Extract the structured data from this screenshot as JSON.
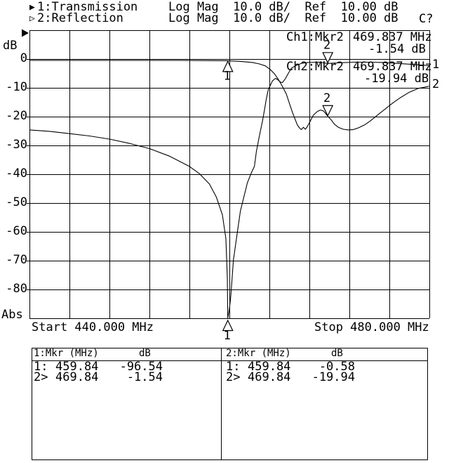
{
  "header": {
    "ch1": {
      "indicator": "▶",
      "name": "1:Transmission",
      "settings": "Log Mag  10.0 dB/  Ref  10.00 dB"
    },
    "ch2": {
      "indicator": "▷",
      "name": "2:Reflection",
      "settings": "Log Mag  10.0 dB/  Ref  10.00 dB",
      "cal_status": "C?"
    }
  },
  "y_axis": {
    "unit": "dB",
    "mode": "Abs",
    "ticks": [
      "0",
      "-10",
      "-20",
      "-30",
      "-40",
      "-50",
      "-60",
      "-70",
      "-80"
    ]
  },
  "x_axis": {
    "start": "Start 440.000 MHz",
    "stop": "Stop 480.000 MHz"
  },
  "readout": {
    "ch1": {
      "label": "Ch1:Mkr2",
      "freq": "469.837 MHz",
      "value": "-1.54 dB"
    },
    "ch2": {
      "label": "Ch2:Mkr2",
      "freq": "469.837 MHz",
      "value": "-19.94 dB"
    }
  },
  "trace_end_labels": {
    "trace1": "1",
    "trace2": "2"
  },
  "marker_tables": {
    "ch1": {
      "title": "1:Mkr (MHz)",
      "unit": "dB",
      "rows": [
        [
          "1:",
          "459.84",
          "-96.54"
        ],
        [
          "2>",
          "469.84",
          "-1.54"
        ]
      ]
    },
    "ch2": {
      "title": "2:Mkr (MHz)",
      "unit": "dB",
      "rows": [
        [
          "1:",
          "459.84",
          "-0.58"
        ],
        [
          "2>",
          "469.84",
          "-19.94"
        ]
      ]
    }
  },
  "colors": {
    "fg": "#000000",
    "bg": "#ffffff"
  },
  "chart_data": {
    "type": "line",
    "title": "Network analyzer: Ch1 Transmission / Ch2 Reflection, Log Mag 10.0 dB/div, Ref 10.00 dB",
    "xlabel": "Frequency (MHz)",
    "ylabel": "dB",
    "x_range": [
      440,
      480
    ],
    "y_range": [
      -90,
      10
    ],
    "y_per_div": 10,
    "ref_level": 10,
    "grid": true,
    "series": [
      {
        "name": "Transmission",
        "points": [
          [
            440,
            -24.6
          ],
          [
            442,
            -25.1
          ],
          [
            444,
            -25.9
          ],
          [
            446,
            -26.7
          ],
          [
            448,
            -27.8
          ],
          [
            450,
            -29.3
          ],
          [
            452,
            -31.1
          ],
          [
            454,
            -33.7
          ],
          [
            456,
            -37.3
          ],
          [
            457,
            -39.8
          ],
          [
            458,
            -43.4
          ],
          [
            458.7,
            -48
          ],
          [
            459.3,
            -54.1
          ],
          [
            459.65,
            -62.4
          ],
          [
            459.79,
            -75.9
          ],
          [
            459.84,
            -96.54
          ],
          [
            460,
            -86.8
          ],
          [
            460.15,
            -82
          ],
          [
            460.4,
            -69.8
          ],
          [
            460.8,
            -60
          ],
          [
            461.1,
            -52.7
          ],
          [
            461.5,
            -47.1
          ],
          [
            461.8,
            -42.9
          ],
          [
            462.2,
            -39.5
          ],
          [
            462.5,
            -37.3
          ],
          [
            462.7,
            -32
          ],
          [
            463,
            -26.6
          ],
          [
            463.3,
            -21.7
          ],
          [
            463.5,
            -17.8
          ],
          [
            463.7,
            -13.7
          ],
          [
            463.9,
            -10.5
          ],
          [
            464.3,
            -7.6
          ],
          [
            464.6,
            -6.7
          ],
          [
            464.8,
            -7.1
          ],
          [
            465.1,
            -8
          ],
          [
            465.3,
            -8.2
          ],
          [
            465.6,
            -6.8
          ],
          [
            465.9,
            -4.9
          ],
          [
            466.2,
            -3.2
          ],
          [
            466.7,
            -2.2
          ],
          [
            467.2,
            -1.5
          ],
          [
            467.9,
            -1.2
          ],
          [
            469,
            -1.1
          ],
          [
            469.8,
            -1.54
          ],
          [
            471.1,
            -1.3
          ],
          [
            472.5,
            -1.1
          ],
          [
            473.9,
            -1.1
          ],
          [
            475.3,
            -1.2
          ],
          [
            476.7,
            -1.5
          ],
          [
            478.1,
            -1.8
          ],
          [
            479.2,
            -2.1
          ],
          [
            480,
            -2.3
          ]
        ]
      },
      {
        "name": "Reflection",
        "points": [
          [
            440,
            -0.5
          ],
          [
            445,
            -0.5
          ],
          [
            450,
            -0.5
          ],
          [
            455,
            -0.5
          ],
          [
            458,
            -0.55
          ],
          [
            459.8,
            -0.58
          ],
          [
            461,
            -0.8
          ],
          [
            462.3,
            -1.2
          ],
          [
            463,
            -1.7
          ],
          [
            463.6,
            -2.4
          ],
          [
            464.1,
            -3.7
          ],
          [
            464.5,
            -5.1
          ],
          [
            464.9,
            -7.1
          ],
          [
            465.3,
            -9.5
          ],
          [
            465.7,
            -12.2
          ],
          [
            466,
            -15.4
          ],
          [
            466.3,
            -18.5
          ],
          [
            466.6,
            -21.2
          ],
          [
            466.8,
            -22.9
          ],
          [
            467,
            -23.9
          ],
          [
            467.2,
            -24.5
          ],
          [
            467.4,
            -23.7
          ],
          [
            467.6,
            -24.4
          ],
          [
            467.8,
            -23.4
          ],
          [
            468.1,
            -21.5
          ],
          [
            468.4,
            -19.5
          ],
          [
            468.8,
            -18.2
          ],
          [
            469.1,
            -17.7
          ],
          [
            469.4,
            -18
          ],
          [
            469.6,
            -18.8
          ],
          [
            469.86,
            -19.94
          ],
          [
            470.2,
            -21.2
          ],
          [
            470.5,
            -22.6
          ],
          [
            470.9,
            -23.7
          ],
          [
            471.4,
            -24.4
          ],
          [
            471.9,
            -24.6
          ],
          [
            472.4,
            -24.5
          ],
          [
            472.9,
            -23.9
          ],
          [
            473.5,
            -22.9
          ],
          [
            474.1,
            -21.5
          ],
          [
            474.8,
            -19.5
          ],
          [
            475.6,
            -17.3
          ],
          [
            476.4,
            -15.1
          ],
          [
            477.2,
            -13.2
          ],
          [
            478,
            -11.5
          ],
          [
            478.9,
            -10.2
          ],
          [
            479.5,
            -9.8
          ],
          [
            480,
            -9.4
          ]
        ]
      }
    ],
    "markers": [
      {
        "trace": "Transmission",
        "n": "1",
        "freq_mhz": 459.84,
        "db": -96.54,
        "offscale": true
      },
      {
        "trace": "Transmission",
        "n": "2",
        "freq_mhz": 469.837,
        "db": -1.54,
        "offscale": false
      },
      {
        "trace": "Reflection",
        "n": "1",
        "freq_mhz": 459.84,
        "db": -0.58,
        "offscale": false
      },
      {
        "trace": "Reflection",
        "n": "2",
        "freq_mhz": 469.837,
        "db": -19.94,
        "offscale": false
      }
    ]
  }
}
